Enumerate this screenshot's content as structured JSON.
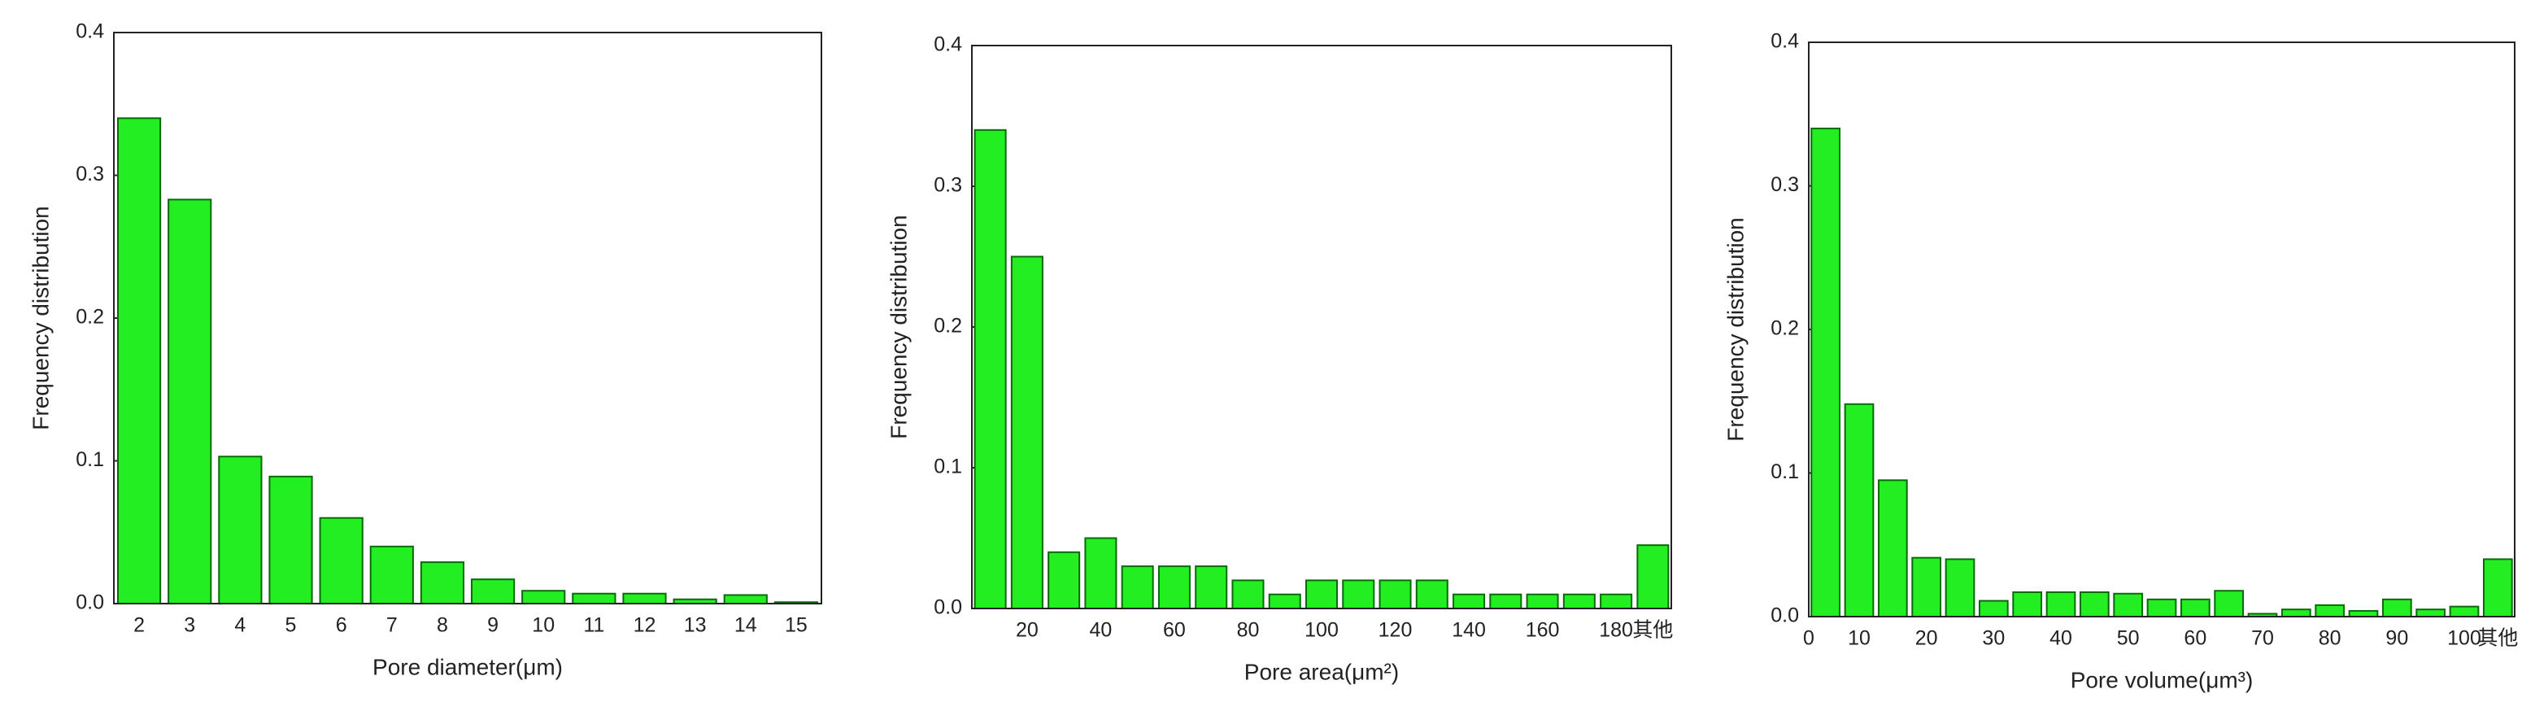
{
  "chart_data": [
    {
      "type": "bar",
      "y_label": "Frequency distribution",
      "x_label": "Pore diameter(μm)",
      "categories": [
        "2",
        "3",
        "4",
        "5",
        "6",
        "7",
        "8",
        "9",
        "10",
        "11",
        "12",
        "13",
        "14",
        "15"
      ],
      "values": [
        0.34,
        0.283,
        0.103,
        0.089,
        0.06,
        0.04,
        0.029,
        0.017,
        0.009,
        0.007,
        0.007,
        0.003,
        0.006,
        0.001
      ],
      "color": "#22ee22",
      "edge_color": "#0a6a0a",
      "ylim": [
        0,
        0.4
      ],
      "yticks": [
        {
          "value": 0,
          "label": "0.0"
        },
        0.1,
        0.2,
        0.3,
        0.4
      ],
      "grid": false
    },
    {
      "type": "bar",
      "y_label": "Frequency distribution",
      "x_label": "Pore area(μm²)",
      "categories": [
        null,
        "20",
        null,
        "40",
        null,
        "60",
        null,
        "80",
        null,
        "100",
        null,
        "120",
        null,
        "140",
        null,
        "160",
        null,
        "180",
        "其他"
      ],
      "values": [
        0.34,
        0.25,
        0.04,
        0.05,
        0.03,
        0.03,
        0.03,
        0.02,
        0.01,
        0.02,
        0.02,
        0.02,
        0.02,
        0.01,
        0.01,
        0.01,
        0.01,
        0.01,
        0.045
      ],
      "color": "#22ee22",
      "edge_color": "#0a6a0a",
      "ylim": [
        0,
        0.4
      ],
      "yticks": [
        {
          "value": 0,
          "label": "0.0"
        },
        0.1,
        0.2,
        0.3,
        0.4
      ],
      "grid": false
    },
    {
      "type": "bar",
      "y_label": "Frequency distribution",
      "x_label": "Pore volume(μm³)",
      "x_start_label": "0",
      "categories": [
        null,
        "10",
        null,
        "20",
        null,
        "30",
        null,
        "40",
        null,
        "50",
        null,
        "60",
        null,
        "70",
        null,
        "80",
        null,
        "90",
        null,
        "100",
        "其他"
      ],
      "values": [
        0.34,
        0.148,
        0.095,
        0.041,
        0.04,
        0.011,
        0.017,
        0.017,
        0.017,
        0.016,
        0.012,
        0.012,
        0.018,
        0.002,
        0.005,
        0.008,
        0.004,
        0.012,
        0.005,
        0.007,
        0.04
      ],
      "color": "#22ee22",
      "edge_color": "#0a6a0a",
      "ylim": [
        0,
        0.4
      ],
      "yticks": [
        {
          "value": 0,
          "label": "0.0"
        },
        0.1,
        0.2,
        0.3,
        0.4
      ],
      "grid": false
    }
  ]
}
